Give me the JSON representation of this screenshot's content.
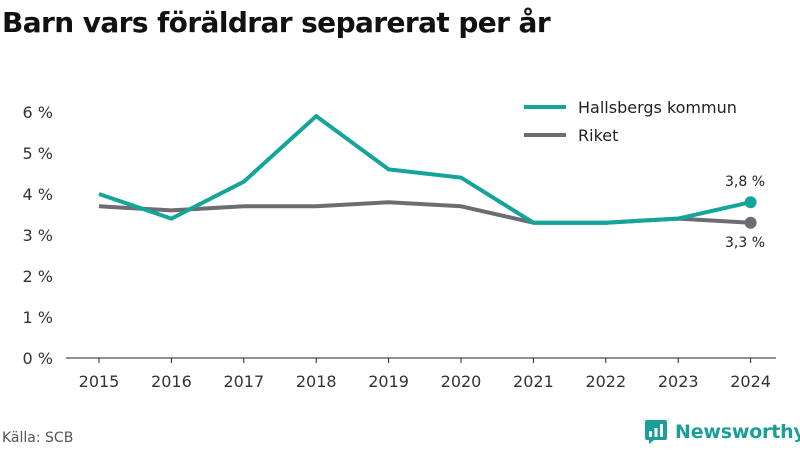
{
  "title": "Barn vars föräldrar separerat per år",
  "source": "Källa: SCB",
  "brand": "Newsworthy",
  "colors": {
    "kommun": "#13a59a",
    "riket": "#6d6c72",
    "brand": "#1a9e97"
  },
  "chart_data": {
    "type": "line",
    "x": [
      "2015",
      "2016",
      "2017",
      "2018",
      "2019",
      "2020",
      "2021",
      "2022",
      "2023",
      "2024"
    ],
    "series": [
      {
        "name": "Hallsbergs kommun",
        "values": [
          4.0,
          3.4,
          4.3,
          5.9,
          4.6,
          4.4,
          3.3,
          3.3,
          3.4,
          3.8
        ],
        "end_label": "3,8 %"
      },
      {
        "name": "Riket",
        "values": [
          3.7,
          3.6,
          3.7,
          3.7,
          3.8,
          3.7,
          3.3,
          3.3,
          3.4,
          3.3
        ],
        "end_label": "3,3 %"
      }
    ],
    "y_ticks": [
      {
        "value": 0,
        "label": "0 %"
      },
      {
        "value": 1,
        "label": "1 %"
      },
      {
        "value": 2,
        "label": "2 %"
      },
      {
        "value": 3,
        "label": "3 %"
      },
      {
        "value": 4,
        "label": "4 %"
      },
      {
        "value": 5,
        "label": "5 %"
      },
      {
        "value": 6,
        "label": "6 %"
      }
    ],
    "ylim": [
      0,
      6
    ],
    "grid": false,
    "legend_position": "top-right"
  }
}
